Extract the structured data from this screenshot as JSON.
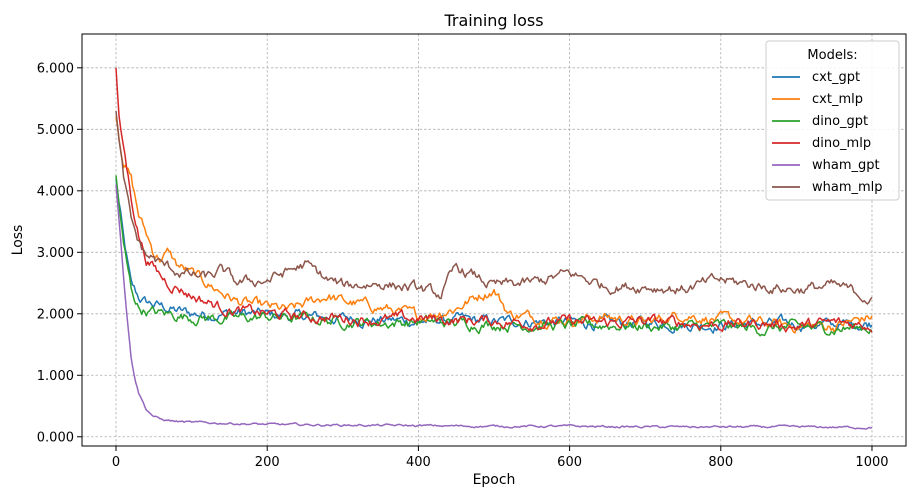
{
  "chart_data": {
    "type": "line",
    "title": "Training loss",
    "xlabel": "Epoch",
    "ylabel": "Loss",
    "xlim": [
      -45,
      1045
    ],
    "ylim": [
      -0.15,
      6.55
    ],
    "xticks": [
      0,
      200,
      400,
      600,
      800,
      1000
    ],
    "xtick_labels": [
      "0",
      "200",
      "400",
      "600",
      "800",
      "1000"
    ],
    "yticks": [
      0,
      1,
      2,
      3,
      4,
      5,
      6
    ],
    "ytick_labels": [
      "0.000",
      "1.000",
      "2.000",
      "3.000",
      "4.000",
      "5.000",
      "6.000"
    ],
    "grid": true,
    "legend_title": "Models:",
    "legend_position": "upper right",
    "series": [
      {
        "name": "cxt_gpt",
        "color": "#1f77b4",
        "x": [
          0,
          10,
          20,
          30,
          40,
          50,
          60,
          80,
          100,
          130,
          160,
          200,
          250,
          300,
          350,
          400,
          450,
          500,
          550,
          600,
          650,
          700,
          750,
          800,
          850,
          900,
          950,
          1000
        ],
        "y": [
          4.2,
          3.2,
          2.45,
          2.25,
          2.18,
          2.15,
          2.12,
          2.05,
          2.0,
          2.0,
          2.02,
          1.98,
          1.95,
          1.93,
          1.9,
          1.88,
          1.9,
          1.87,
          1.88,
          1.86,
          1.84,
          1.86,
          1.83,
          1.82,
          1.84,
          1.83,
          1.82,
          1.85
        ]
      },
      {
        "name": "cxt_mlp",
        "color": "#ff7f0e",
        "x": [
          0,
          10,
          20,
          30,
          40,
          50,
          60,
          70,
          80,
          100,
          120,
          140,
          160,
          200,
          230,
          250,
          280,
          300,
          350,
          400,
          450,
          480,
          500,
          520,
          550,
          600,
          650,
          700,
          750,
          800,
          850,
          900,
          950,
          1000
        ],
        "y": [
          5.2,
          4.5,
          4.2,
          3.6,
          3.3,
          3.0,
          2.9,
          3.0,
          2.8,
          2.65,
          2.5,
          2.35,
          2.2,
          2.1,
          2.05,
          2.15,
          2.3,
          2.2,
          2.1,
          1.95,
          2.1,
          2.3,
          2.4,
          2.0,
          1.95,
          1.9,
          1.95,
          1.85,
          2.0,
          1.9,
          1.85,
          1.8,
          1.8,
          1.95
        ]
      },
      {
        "name": "dino_gpt",
        "color": "#2ca02c",
        "x": [
          0,
          10,
          20,
          30,
          40,
          50,
          60,
          80,
          100,
          130,
          160,
          200,
          250,
          300,
          350,
          400,
          450,
          500,
          550,
          600,
          650,
          700,
          750,
          800,
          850,
          900,
          950,
          1000
        ],
        "y": [
          4.25,
          3.1,
          2.4,
          2.1,
          2.05,
          2.02,
          2.0,
          1.98,
          1.95,
          1.93,
          1.92,
          1.95,
          1.92,
          1.88,
          1.85,
          1.87,
          1.85,
          1.83,
          1.82,
          1.8,
          1.82,
          1.8,
          1.78,
          1.8,
          1.75,
          1.78,
          1.76,
          1.78
        ]
      },
      {
        "name": "dino_mlp",
        "color": "#d62728",
        "x": [
          0,
          5,
          10,
          20,
          30,
          40,
          50,
          60,
          70,
          80,
          100,
          120,
          140,
          160,
          200,
          250,
          300,
          350,
          400,
          450,
          500,
          550,
          600,
          650,
          700,
          750,
          800,
          850,
          900,
          950,
          1000
        ],
        "y": [
          6.0,
          5.0,
          4.7,
          3.9,
          3.3,
          2.9,
          2.75,
          2.6,
          2.5,
          2.45,
          2.3,
          2.2,
          2.1,
          2.05,
          2.0,
          1.95,
          1.93,
          1.9,
          1.92,
          1.9,
          1.88,
          1.85,
          1.87,
          1.85,
          1.88,
          1.85,
          1.82,
          1.85,
          1.8,
          1.85,
          1.82
        ]
      },
      {
        "name": "wham_gpt",
        "color": "#9467bd",
        "x": [
          0,
          5,
          10,
          15,
          20,
          25,
          30,
          40,
          50,
          60,
          80,
          100,
          150,
          200,
          300,
          400,
          500,
          600,
          700,
          800,
          900,
          1000
        ],
        "y": [
          4.1,
          3.4,
          2.6,
          1.9,
          1.3,
          0.95,
          0.72,
          0.45,
          0.33,
          0.28,
          0.25,
          0.23,
          0.22,
          0.2,
          0.19,
          0.18,
          0.17,
          0.17,
          0.16,
          0.16,
          0.16,
          0.15
        ]
      },
      {
        "name": "wham_mlp",
        "color": "#8c564b",
        "x": [
          0,
          5,
          10,
          20,
          30,
          40,
          50,
          60,
          70,
          80,
          100,
          120,
          140,
          160,
          200,
          250,
          280,
          300,
          350,
          400,
          430,
          450,
          500,
          550,
          600,
          650,
          700,
          750,
          800,
          850,
          900,
          950,
          990,
          1000
        ],
        "y": [
          5.3,
          4.7,
          4.2,
          3.5,
          3.15,
          2.95,
          2.9,
          2.8,
          2.75,
          2.7,
          2.62,
          2.58,
          2.7,
          2.5,
          2.55,
          2.8,
          2.55,
          2.45,
          2.5,
          2.4,
          2.3,
          2.75,
          2.45,
          2.5,
          2.65,
          2.45,
          2.45,
          2.4,
          2.55,
          2.45,
          2.4,
          2.45,
          2.3,
          2.2
        ]
      }
    ]
  }
}
